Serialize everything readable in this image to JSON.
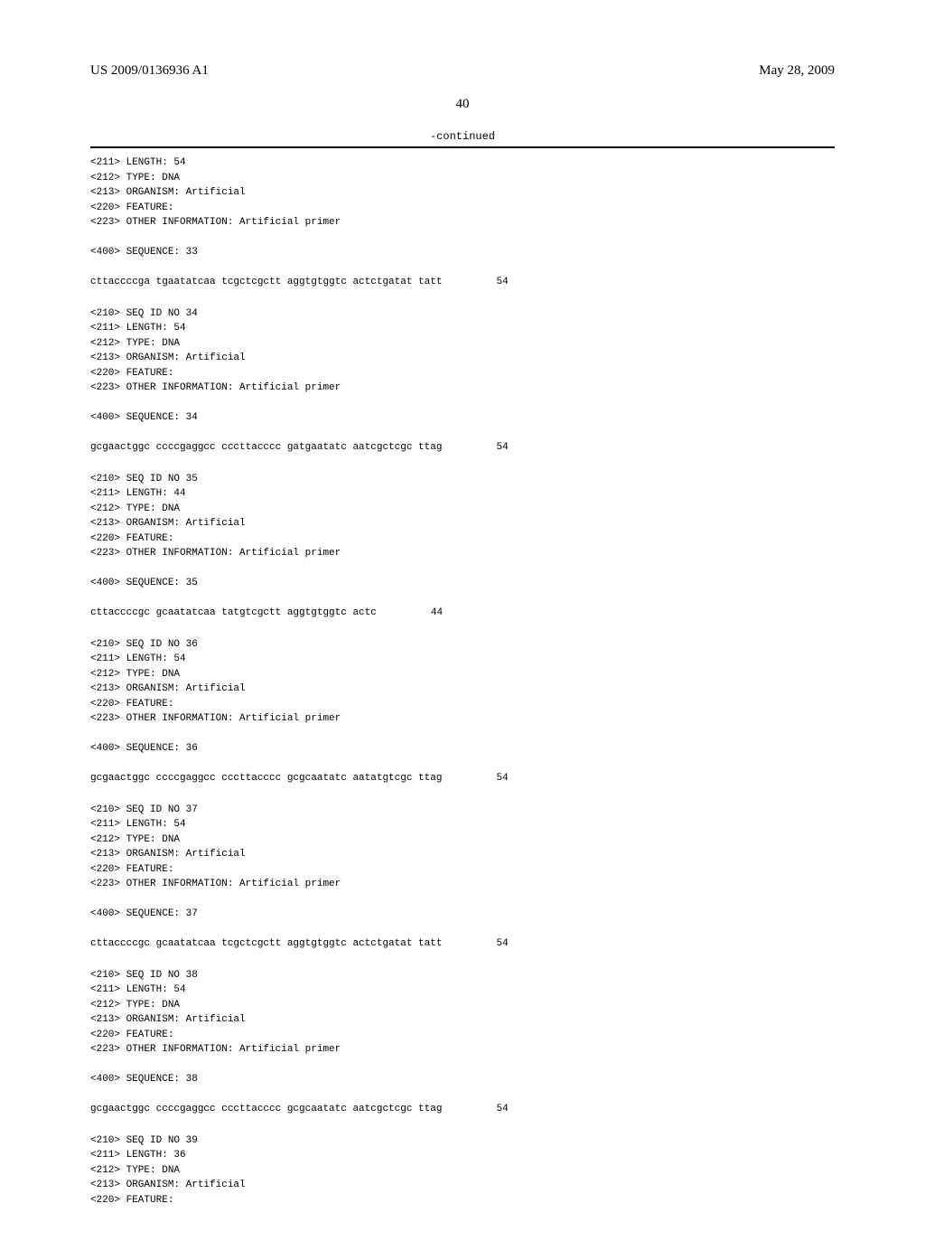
{
  "header": {
    "pub_number": "US 2009/0136936 A1",
    "pub_date": "May 28, 2009"
  },
  "page_number": "40",
  "continued_label": "-continued",
  "entries": [
    {
      "lines": [
        "<211> LENGTH: 54",
        "<212> TYPE: DNA",
        "<213> ORGANISM: Artificial",
        "<220> FEATURE:",
        "<223> OTHER INFORMATION: Artificial primer",
        "",
        "<400> SEQUENCE: 33"
      ],
      "sequence": "cttaccccga tgaatatcaa tcgctcgctt aggtgtggtc actctgatat tatt",
      "length": "54"
    },
    {
      "lines": [
        "<210> SEQ ID NO 34",
        "<211> LENGTH: 54",
        "<212> TYPE: DNA",
        "<213> ORGANISM: Artificial",
        "<220> FEATURE:",
        "<223> OTHER INFORMATION: Artificial primer",
        "",
        "<400> SEQUENCE: 34"
      ],
      "sequence": "gcgaactggc ccccgaggcc cccttacccc gatgaatatc aatcgctcgc ttag",
      "length": "54"
    },
    {
      "lines": [
        "<210> SEQ ID NO 35",
        "<211> LENGTH: 44",
        "<212> TYPE: DNA",
        "<213> ORGANISM: Artificial",
        "<220> FEATURE:",
        "<223> OTHER INFORMATION: Artificial primer",
        "",
        "<400> SEQUENCE: 35"
      ],
      "sequence": "cttaccccgc gcaatatcaa tatgtcgctt aggtgtggtc actc",
      "length": "44"
    },
    {
      "lines": [
        "<210> SEQ ID NO 36",
        "<211> LENGTH: 54",
        "<212> TYPE: DNA",
        "<213> ORGANISM: Artificial",
        "<220> FEATURE:",
        "<223> OTHER INFORMATION: Artificial primer",
        "",
        "<400> SEQUENCE: 36"
      ],
      "sequence": "gcgaactggc ccccgaggcc cccttacccc gcgcaatatc aatatgtcgc ttag",
      "length": "54"
    },
    {
      "lines": [
        "<210> SEQ ID NO 37",
        "<211> LENGTH: 54",
        "<212> TYPE: DNA",
        "<213> ORGANISM: Artificial",
        "<220> FEATURE:",
        "<223> OTHER INFORMATION: Artificial primer",
        "",
        "<400> SEQUENCE: 37"
      ],
      "sequence": "cttaccccgc gcaatatcaa tcgctcgctt aggtgtggtc actctgatat tatt",
      "length": "54"
    },
    {
      "lines": [
        "<210> SEQ ID NO 38",
        "<211> LENGTH: 54",
        "<212> TYPE: DNA",
        "<213> ORGANISM: Artificial",
        "<220> FEATURE:",
        "<223> OTHER INFORMATION: Artificial primer",
        "",
        "<400> SEQUENCE: 38"
      ],
      "sequence": "gcgaactggc ccccgaggcc cccttacccc gcgcaatatc aatcgctcgc ttag",
      "length": "54"
    },
    {
      "lines": [
        "<210> SEQ ID NO 39",
        "<211> LENGTH: 36",
        "<212> TYPE: DNA",
        "<213> ORGANISM: Artificial",
        "<220> FEATURE:"
      ],
      "sequence": "",
      "length": ""
    }
  ]
}
